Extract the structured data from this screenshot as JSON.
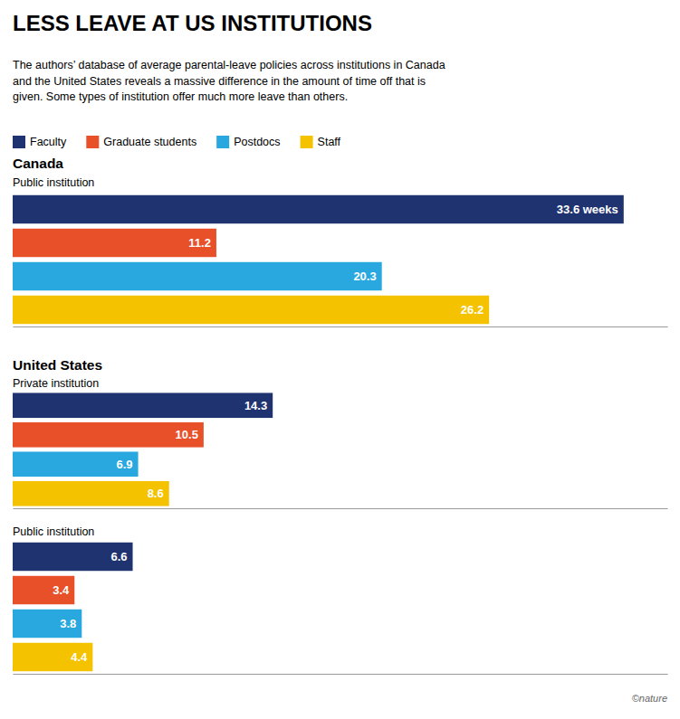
{
  "title": "LESS LEAVE AT US INSTITUTIONS",
  "subtitle": "The authors’ database of average parental-leave policies across institutions in Canada\nand the United States reveals a massive difference in the amount of time off that is\ngiven. Some types of institution offer much more leave than others.",
  "annotations": [
    "©nature"
  ],
  "chart_data": [
    {
      "type": "bar",
      "orientation": "horizontal",
      "title": "Canada",
      "subtitle": "Public institution",
      "categories": [
        "Faculty",
        "Graduate students",
        "Postdocs",
        "Staff"
      ],
      "values": [
        33.6,
        11.2,
        20.3,
        26.2
      ],
      "value_labels": [
        "33.6 weeks",
        "11.2",
        "20.3",
        "26.2"
      ],
      "colors": [
        "#1f3370",
        "#e8502a",
        "#29a8e0",
        "#f5c200"
      ],
      "xlim": [
        0,
        36
      ],
      "tick_labels": false,
      "data_labels": true,
      "legend": "top"
    },
    {
      "type": "bar",
      "orientation": "horizontal",
      "title": "United States",
      "subtitle": "Private institution",
      "categories": [
        "Faculty",
        "Graduate students",
        "Postdocs",
        "Staff"
      ],
      "values": [
        14.3,
        10.5,
        6.9,
        8.6
      ],
      "colors": [
        "#1f3370",
        "#e8502a",
        "#29a8e0",
        "#f5c200"
      ],
      "xlim": [
        0,
        36
      ],
      "tick_labels": false,
      "data_labels": true
    },
    {
      "type": "bar",
      "orientation": "horizontal",
      "subtitle": "Public institution",
      "categories": [
        "Faculty",
        "Graduate students",
        "Postdocs",
        "Staff"
      ],
      "values": [
        6.6,
        3.4,
        3.8,
        4.4
      ],
      "colors": [
        "#1f3370",
        "#e8502a",
        "#29a8e0",
        "#f5c200"
      ],
      "xlim": [
        0,
        36
      ],
      "tick_labels": false,
      "data_labels": true
    }
  ]
}
